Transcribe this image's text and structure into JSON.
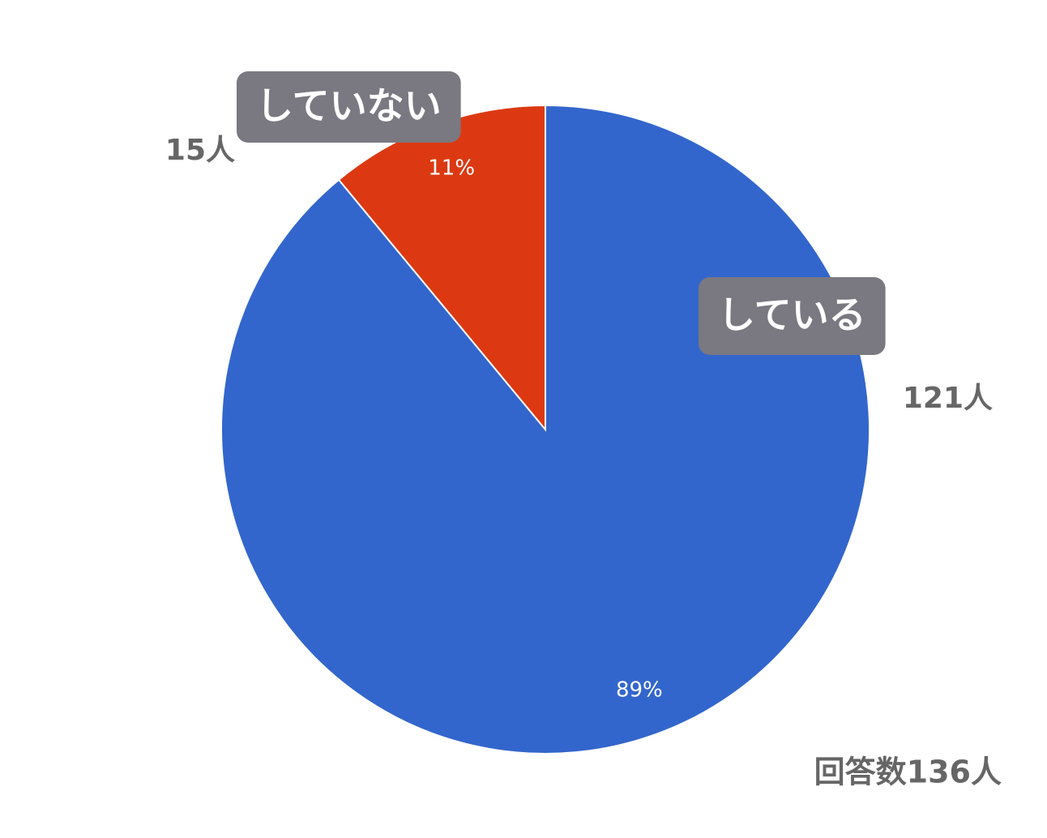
{
  "chart_data": {
    "type": "pie",
    "categories": [
      "している",
      "していない"
    ],
    "values": [
      89,
      11
    ],
    "value_labels": [
      "89%",
      "11%"
    ],
    "count_labels": [
      "121人",
      "15人"
    ],
    "colors": [
      "#3366cc",
      "#dc3912"
    ],
    "note": "回答数136人"
  }
}
